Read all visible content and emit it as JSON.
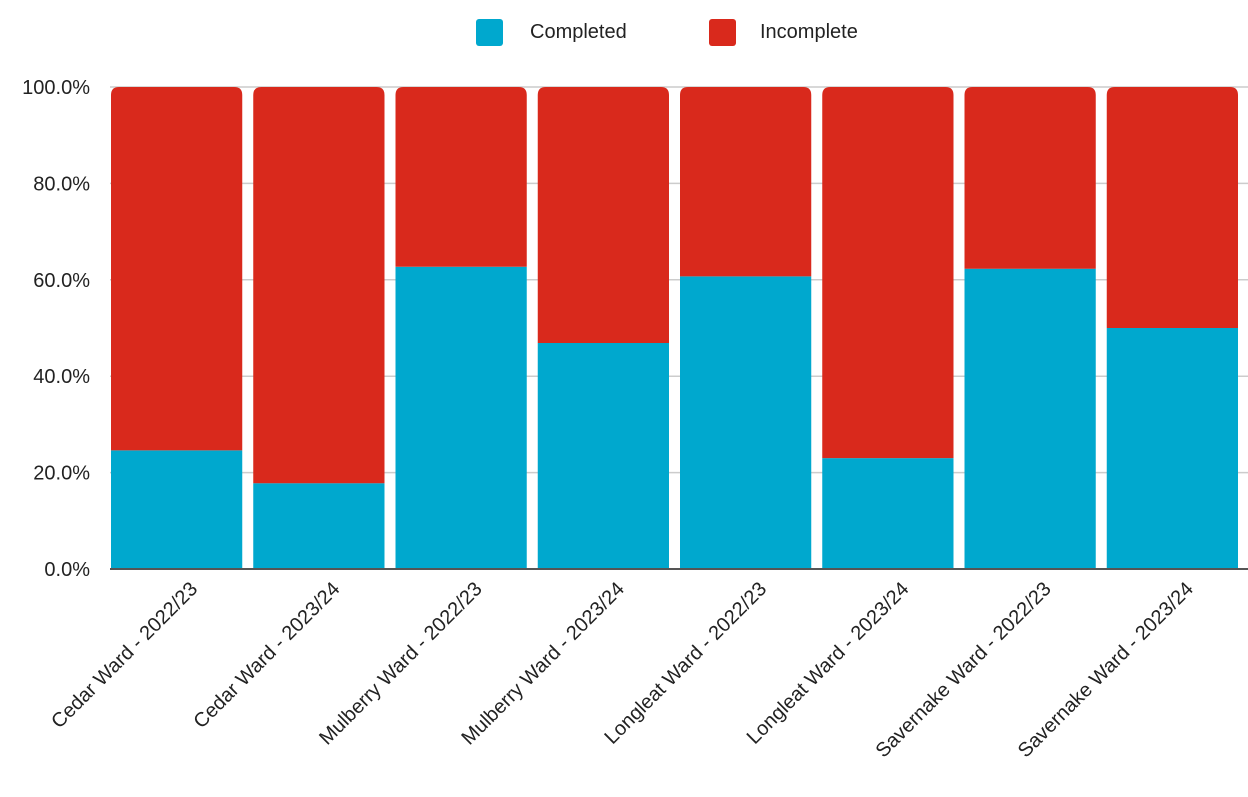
{
  "colors": {
    "completed": "#00a8ce",
    "incomplete": "#d9291c",
    "grid": "#cccccc",
    "axis": "#555555"
  },
  "chart_data": {
    "type": "bar",
    "stacked": true,
    "normalized": true,
    "categories": [
      "Cedar Ward - 2022/23",
      "Cedar Ward - 2023/24",
      "Mulberry Ward - 2022/23",
      "Mulberry Ward - 2023/24",
      "Longleat Ward - 2022/23",
      "Longleat Ward - 2023/24",
      "Savernake Ward - 2022/23",
      "Savernake Ward - 2023/24"
    ],
    "series": [
      {
        "name": "Completed",
        "color": "#00a8ce",
        "values": [
          24.6,
          17.8,
          62.7,
          46.9,
          60.7,
          23.0,
          62.3,
          50.0
        ]
      },
      {
        "name": "Incomplete",
        "color": "#d9291c",
        "values": [
          75.4,
          82.2,
          37.3,
          53.1,
          39.3,
          77.0,
          37.7,
          50.0
        ]
      }
    ],
    "y_ticks": [
      "0.0%",
      "20.0%",
      "40.0%",
      "60.0%",
      "80.0%",
      "100.0%"
    ],
    "ylim": [
      0,
      100
    ],
    "grid": true,
    "legend_position": "top-center"
  }
}
